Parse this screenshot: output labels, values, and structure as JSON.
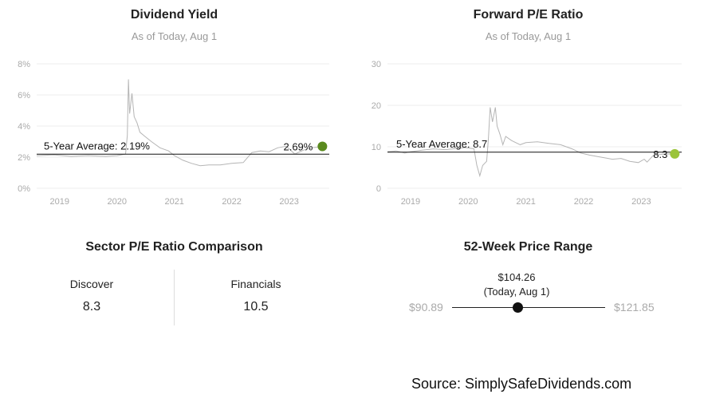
{
  "charts": {
    "dividend_yield": {
      "title": "Dividend Yield",
      "subtitle": "As of Today, Aug 1",
      "average_label": "5-Year Average: 2.19%",
      "current_label": "2.69%",
      "current_color": "#5a8a1e"
    },
    "forward_pe": {
      "title": "Forward P/E Ratio",
      "subtitle": "As of Today, Aug 1",
      "average_label": "5-Year Average: 8.7",
      "current_label": "8.3",
      "current_color": "#9bc43a"
    }
  },
  "chart_data": [
    {
      "type": "line",
      "title": "Dividend Yield",
      "subtitle": "As of Today, Aug 1",
      "yticks": [
        "0%",
        "2%",
        "4%",
        "6%",
        "8%"
      ],
      "ylim": [
        0,
        8
      ],
      "xticks": [
        "2019",
        "2020",
        "2021",
        "2022",
        "2023"
      ],
      "xlim": [
        2018.6,
        2023.7
      ],
      "grid": true,
      "average": 2.19,
      "current": {
        "x": 2023.58,
        "y": 2.69
      },
      "series": [
        {
          "values": [
            [
              2018.6,
              2.1
            ],
            [
              2018.9,
              2.15
            ],
            [
              2019.2,
              2.05
            ],
            [
              2019.5,
              2.1
            ],
            [
              2019.8,
              2.05
            ],
            [
              2020.0,
              2.1
            ],
            [
              2020.15,
              2.2
            ],
            [
              2020.18,
              3.4
            ],
            [
              2020.2,
              7.0
            ],
            [
              2020.22,
              4.8
            ],
            [
              2020.26,
              6.1
            ],
            [
              2020.3,
              4.6
            ],
            [
              2020.35,
              4.2
            ],
            [
              2020.4,
              3.6
            ],
            [
              2020.5,
              3.3
            ],
            [
              2020.6,
              3.0
            ],
            [
              2020.75,
              2.6
            ],
            [
              2020.9,
              2.4
            ],
            [
              2021.0,
              2.1
            ],
            [
              2021.15,
              1.8
            ],
            [
              2021.3,
              1.6
            ],
            [
              2021.45,
              1.45
            ],
            [
              2021.6,
              1.5
            ],
            [
              2021.8,
              1.5
            ],
            [
              2022.0,
              1.6
            ],
            [
              2022.2,
              1.65
            ],
            [
              2022.35,
              2.3
            ],
            [
              2022.5,
              2.4
            ],
            [
              2022.65,
              2.35
            ],
            [
              2022.8,
              2.6
            ],
            [
              2022.95,
              2.7
            ],
            [
              2023.1,
              2.2
            ],
            [
              2023.25,
              2.45
            ],
            [
              2023.4,
              2.6
            ],
            [
              2023.58,
              2.69
            ]
          ]
        }
      ]
    },
    {
      "type": "line",
      "title": "Forward P/E Ratio",
      "subtitle": "As of Today, Aug 1",
      "yticks": [
        "0",
        "10",
        "20",
        "30"
      ],
      "ylim": [
        0,
        30
      ],
      "xticks": [
        "2019",
        "2020",
        "2021",
        "2022",
        "2023"
      ],
      "xlim": [
        2018.6,
        2023.7
      ],
      "grid": true,
      "average": 8.7,
      "current": {
        "x": 2023.58,
        "y": 8.3
      },
      "series": [
        {
          "values": [
            [
              2018.6,
              8.8
            ],
            [
              2018.75,
              9.0
            ],
            [
              2018.9,
              8.5
            ],
            [
              2019.0,
              8.8
            ],
            [
              2019.2,
              9.2
            ],
            [
              2019.4,
              9.5
            ],
            [
              2019.6,
              9.3
            ],
            [
              2019.8,
              9.6
            ],
            [
              2019.95,
              9.8
            ],
            [
              2020.1,
              9.5
            ],
            [
              2020.15,
              5.5
            ],
            [
              2020.2,
              3.0
            ],
            [
              2020.25,
              5.5
            ],
            [
              2020.32,
              6.5
            ],
            [
              2020.35,
              12.0
            ],
            [
              2020.38,
              19.5
            ],
            [
              2020.42,
              16.0
            ],
            [
              2020.47,
              19.5
            ],
            [
              2020.5,
              15.0
            ],
            [
              2020.55,
              13.0
            ],
            [
              2020.6,
              10.5
            ],
            [
              2020.65,
              12.5
            ],
            [
              2020.75,
              11.5
            ],
            [
              2020.9,
              10.5
            ],
            [
              2021.0,
              11.0
            ],
            [
              2021.2,
              11.2
            ],
            [
              2021.4,
              10.8
            ],
            [
              2021.6,
              10.5
            ],
            [
              2021.8,
              9.5
            ],
            [
              2021.95,
              8.5
            ],
            [
              2022.1,
              8.0
            ],
            [
              2022.3,
              7.5
            ],
            [
              2022.5,
              7.0
            ],
            [
              2022.65,
              7.2
            ],
            [
              2022.8,
              6.5
            ],
            [
              2022.95,
              6.2
            ],
            [
              2023.05,
              7.0
            ],
            [
              2023.1,
              6.3
            ],
            [
              2023.2,
              7.8
            ],
            [
              2023.35,
              8.2
            ],
            [
              2023.58,
              8.3
            ]
          ]
        }
      ]
    }
  ],
  "comparison": {
    "title": "Sector P/E Ratio Comparison",
    "items": [
      {
        "label": "Discover",
        "value": "8.3"
      },
      {
        "label": "Financials",
        "value": "10.5"
      }
    ]
  },
  "price_range": {
    "title": "52-Week Price Range",
    "low": "$90.89",
    "high": "$121.85",
    "current": "$104.26",
    "current_note": "(Today, Aug 1)",
    "low_value": 90.89,
    "high_value": 121.85,
    "current_value": 104.26
  },
  "source": "Source: SimplySafeDividends.com"
}
